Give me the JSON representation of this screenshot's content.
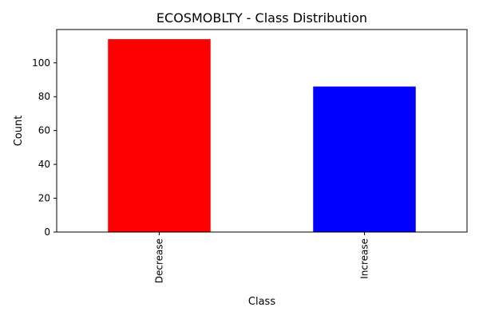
{
  "chart_data": {
    "type": "bar",
    "title": "ECOSMOBLTY - Class Distribution",
    "xlabel": "Class",
    "ylabel": "Count",
    "categories": [
      "Decrease",
      "Increase"
    ],
    "values": [
      114,
      86
    ],
    "colors": [
      "#ff0000",
      "#0000ff"
    ],
    "ylim": [
      0,
      119.7
    ],
    "yticks": [
      0,
      20,
      40,
      60,
      80,
      100
    ],
    "grid": false,
    "legend": "none"
  }
}
